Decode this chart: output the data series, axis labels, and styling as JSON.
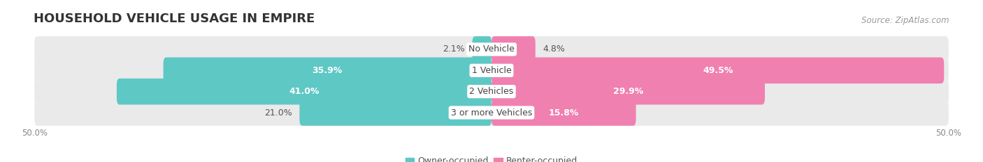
{
  "title": "HOUSEHOLD VEHICLE USAGE IN EMPIRE",
  "source": "Source: ZipAtlas.com",
  "categories": [
    "No Vehicle",
    "1 Vehicle",
    "2 Vehicles",
    "3 or more Vehicles"
  ],
  "owner_values": [
    2.1,
    35.9,
    41.0,
    21.0
  ],
  "renter_values": [
    4.8,
    49.5,
    29.9,
    15.8
  ],
  "owner_color": "#5EC8C5",
  "renter_color": "#F080B0",
  "bar_bg_color": "#EAEAEA",
  "bar_height": 0.62,
  "xlim": 50.0,
  "legend_owner": "Owner-occupied",
  "legend_renter": "Renter-occupied",
  "title_fontsize": 13,
  "label_fontsize": 9,
  "axis_fontsize": 8.5,
  "source_fontsize": 8.5,
  "label_threshold": 10,
  "owner_label_outside": [
    true,
    false,
    false,
    true
  ],
  "renter_label_outside": [
    true,
    false,
    false,
    false
  ]
}
